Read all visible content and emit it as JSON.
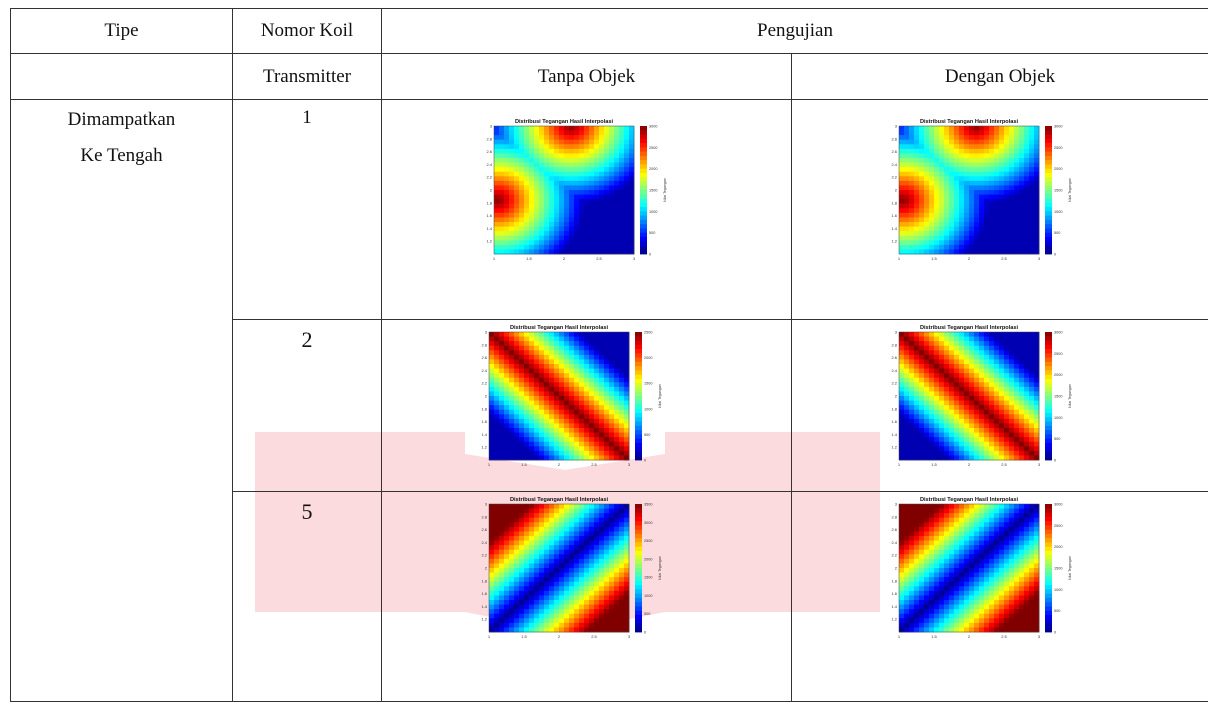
{
  "table": {
    "headers": {
      "tipe": "Tipe",
      "nomor_koil_line1": "Nomor Koil",
      "nomor_koil_line2": "Transmitter",
      "pengujian": "Pengujian",
      "tanpa_objek": "Tanpa Objek",
      "dengan_objek": "Dengan Objek"
    },
    "type_label_line1": "Dimampatkan",
    "type_label_line2": "Ke Tengah",
    "rows": [
      {
        "coil": "1"
      },
      {
        "coil": "2"
      },
      {
        "coil": "5"
      }
    ]
  },
  "plots": {
    "title": "Distribusi Tegangan Hasil Interpolasi",
    "colorbar_label": "Nilai Tegangan",
    "x_ticks": [
      "1",
      "1.5",
      "2",
      "2.5",
      "3"
    ],
    "y_ticks": [
      "1.2",
      "1.4",
      "1.6",
      "1.8",
      "2",
      "2.2",
      "2.4",
      "2.6",
      "2.8",
      "3"
    ]
  },
  "chart_data": [
    {
      "type": "heatmap",
      "coil": "1",
      "condition": "Tanpa Objek",
      "pattern": "coil1",
      "cbar_ticks": [
        "0",
        "500",
        "1000",
        "1500",
        "2000",
        "2500",
        "3000"
      ],
      "xlim": [
        1,
        3
      ],
      "ylim": [
        1,
        3
      ]
    },
    {
      "type": "heatmap",
      "coil": "1",
      "condition": "Dengan Objek",
      "pattern": "coil1",
      "cbar_ticks": [
        "0",
        "500",
        "1000",
        "1500",
        "2000",
        "2500",
        "3000"
      ],
      "xlim": [
        1,
        3
      ],
      "ylim": [
        1,
        3
      ]
    },
    {
      "type": "heatmap",
      "coil": "2",
      "condition": "Tanpa Objek",
      "pattern": "coil2",
      "cbar_ticks": [
        "0",
        "500",
        "1000",
        "1500",
        "2000",
        "2500"
      ],
      "xlim": [
        1,
        3
      ],
      "ylim": [
        1,
        3
      ]
    },
    {
      "type": "heatmap",
      "coil": "2",
      "condition": "Dengan Objek",
      "pattern": "coil2",
      "cbar_ticks": [
        "0",
        "500",
        "1000",
        "1500",
        "2000",
        "2500",
        "3000"
      ],
      "xlim": [
        1,
        3
      ],
      "ylim": [
        1,
        3
      ]
    },
    {
      "type": "heatmap",
      "coil": "5",
      "condition": "Tanpa Objek",
      "pattern": "coil5",
      "cbar_ticks": [
        "0",
        "500",
        "1000",
        "1500",
        "2000",
        "2500",
        "3000",
        "3500"
      ],
      "xlim": [
        1,
        3
      ],
      "ylim": [
        1,
        3
      ]
    },
    {
      "type": "heatmap",
      "coil": "5",
      "condition": "Dengan Objek",
      "pattern": "coil5",
      "cbar_ticks": [
        "0",
        "500",
        "1000",
        "1500",
        "2000",
        "2500",
        "3000"
      ],
      "xlim": [
        1,
        3
      ],
      "ylim": [
        1,
        3
      ]
    }
  ]
}
